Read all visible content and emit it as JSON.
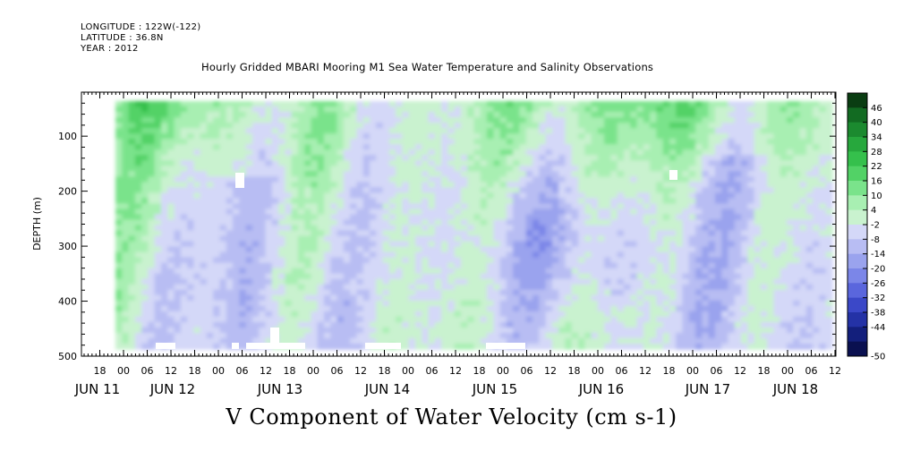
{
  "header": {
    "longitude": "LONGITUDE : 122W(-122)",
    "latitude": "LATITUDE : 36.8N",
    "year": "YEAR : 2012"
  },
  "chart_data": {
    "type": "heatmap",
    "title": "Hourly Gridded MBARI Mooring M1 Sea Water Temperature and Salinity Observations",
    "bottom_title": "V Component of Water Velocity (cm s-1)",
    "ylabel": "DEPTH (m)",
    "xlabel": "",
    "yticks": [
      100,
      200,
      300,
      400,
      500
    ],
    "ylim": [
      20,
      500
    ],
    "y_reversed": true,
    "x_hour_labels": [
      "18",
      "00",
      "06",
      "12",
      "18",
      "00",
      "06",
      "12",
      "18",
      "00",
      "06",
      "12",
      "18",
      "00",
      "06",
      "12",
      "18",
      "00",
      "06",
      "12",
      "18",
      "00",
      "06",
      "12",
      "18",
      "00",
      "06",
      "12",
      "18",
      "00",
      "06",
      "12"
    ],
    "x_day_labels": [
      "JUN 11",
      "JUN 12",
      "JUN 13",
      "JUN 14",
      "JUN 15",
      "JUN 16",
      "JUN 17",
      "JUN 18"
    ],
    "colorbar_levels": [
      46,
      40,
      34,
      28,
      22,
      16,
      10,
      4,
      -2,
      -8,
      -14,
      -20,
      -26,
      -32,
      -38,
      -44,
      -50
    ],
    "colorbar_colors": [
      "#0a3d12",
      "#126b22",
      "#1b8a2f",
      "#27a83d",
      "#35c04c",
      "#52d266",
      "#7ae38b",
      "#a8efb2",
      "#c9f2cf",
      "#d4d8f8",
      "#b8bdf3",
      "#9aa3ee",
      "#7b86e8",
      "#5a66dd",
      "#3b48c8",
      "#2432a6",
      "#131f7c",
      "#0a1050"
    ],
    "colorbar_tick_labels": [
      "46",
      "40",
      "34",
      "28",
      "22",
      "16",
      "10",
      "4",
      "-2",
      "-8",
      "-14",
      "-20",
      "-26",
      "-32",
      "-38",
      "-44",
      "-50"
    ]
  }
}
